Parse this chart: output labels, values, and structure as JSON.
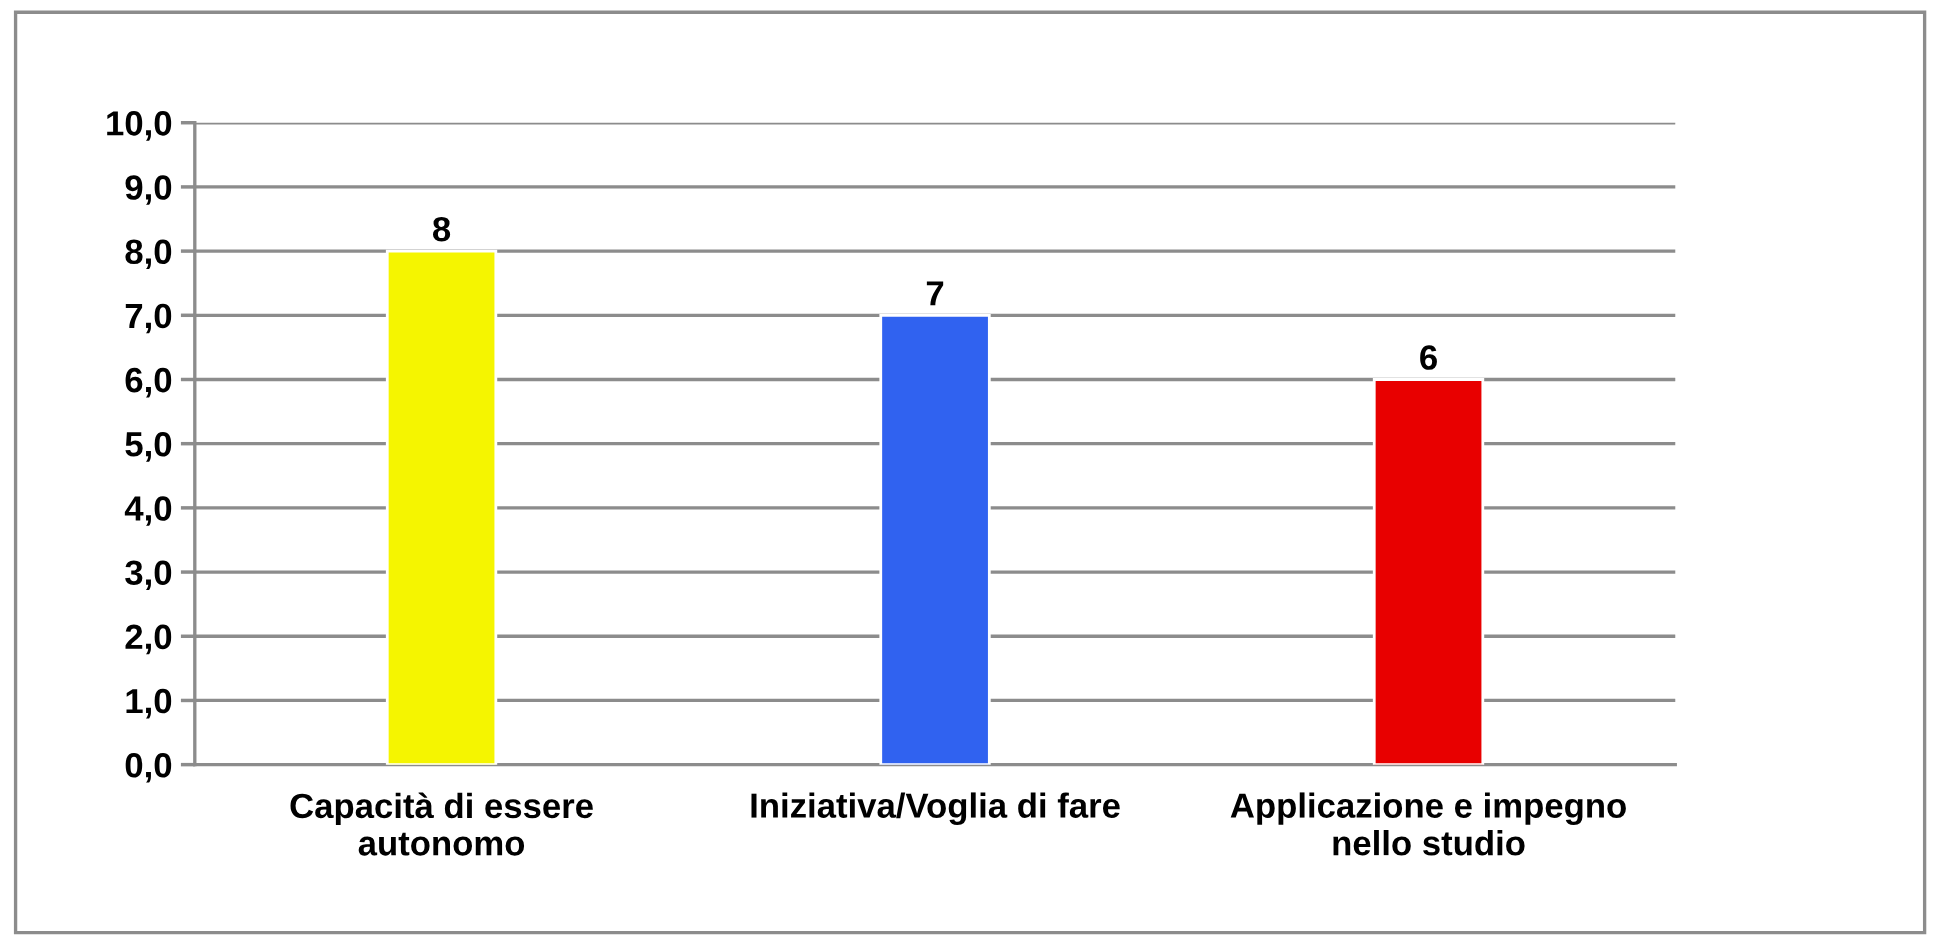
{
  "chart_data": {
    "type": "bar",
    "categories": [
      "Capacità di essere\nautonomo",
      "Iniziativa/Voglia di fare",
      "Applicazione e impegno\nnello studio"
    ],
    "values": [
      8,
      7,
      6
    ],
    "colors": [
      "#f5f500",
      "#3062f0",
      "#e80000"
    ],
    "ylim": [
      0,
      10
    ],
    "yticks": [
      {
        "value": 0,
        "label": "0,0"
      },
      {
        "value": 1,
        "label": "1,0"
      },
      {
        "value": 2,
        "label": "2,0"
      },
      {
        "value": 3,
        "label": "3,0"
      },
      {
        "value": 4,
        "label": "4,0"
      },
      {
        "value": 5,
        "label": "5,0"
      },
      {
        "value": 6,
        "label": "6,0"
      },
      {
        "value": 7,
        "label": "7,0"
      },
      {
        "value": 8,
        "label": "8,0"
      },
      {
        "value": 9,
        "label": "9,0"
      },
      {
        "value": 10,
        "label": "10,0"
      }
    ],
    "grid": "y",
    "data_labels": true
  }
}
